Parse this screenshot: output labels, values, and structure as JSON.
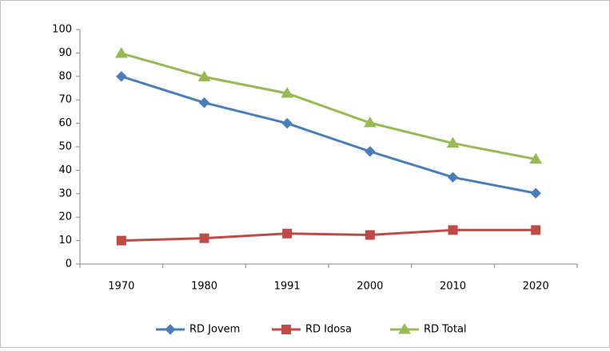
{
  "chart_data": {
    "type": "line",
    "categories": [
      "1970",
      "1980",
      "1991",
      "2000",
      "2010",
      "2020"
    ],
    "series": [
      {
        "name": "RD Jovem",
        "color": "#4a7ebb",
        "marker": "diamond",
        "values": [
          80,
          68.8,
          60,
          48,
          37,
          30.2
        ]
      },
      {
        "name": "RD Idosa",
        "color": "#be4b48",
        "marker": "square",
        "values": [
          10,
          11,
          13,
          12.4,
          14.5,
          14.5
        ]
      },
      {
        "name": "RD Total",
        "color": "#98b954",
        "marker": "triangle",
        "values": [
          89.8,
          79.8,
          72.8,
          60.2,
          51.5,
          44.7
        ]
      }
    ],
    "ylim": [
      0,
      100
    ],
    "yticks": [
      0,
      10,
      20,
      30,
      40,
      50,
      60,
      70,
      80,
      90,
      100
    ],
    "grid": false,
    "legend": "bottom"
  }
}
